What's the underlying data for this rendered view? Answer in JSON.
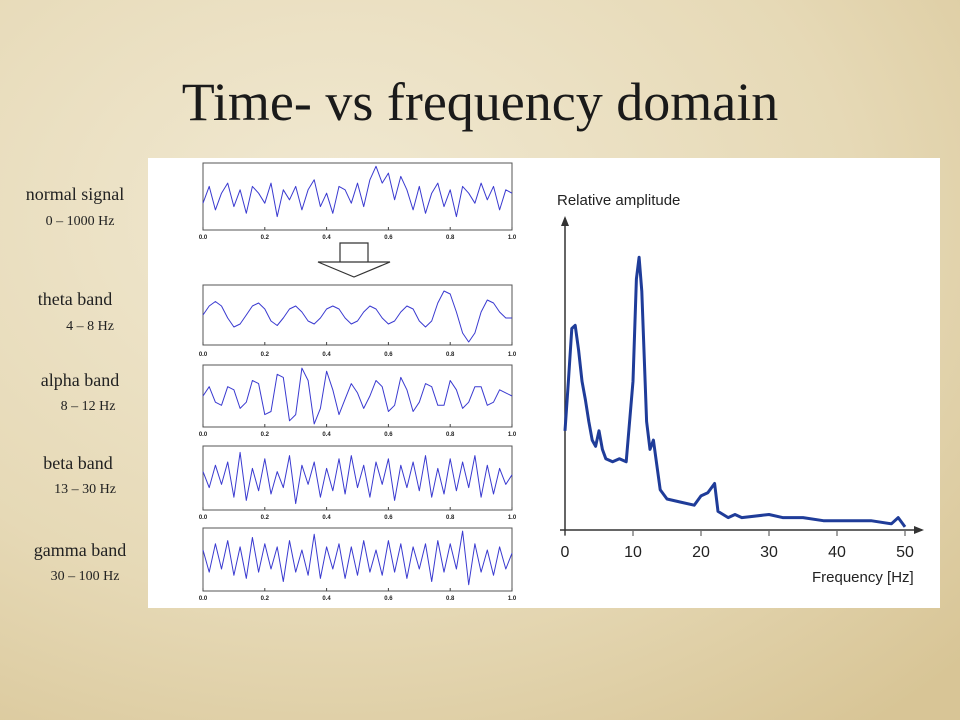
{
  "slide": {
    "title": "Time- vs frequency domain",
    "labels": [
      {
        "name": "normal signal",
        "range": "0 – 1000 Hz"
      },
      {
        "name": "theta band",
        "range": "4 – 8 Hz"
      },
      {
        "name": "alpha band",
        "range": "8 – 12 Hz"
      },
      {
        "name": "beta band",
        "range": "13 – 30 Hz"
      },
      {
        "name": "gamma band",
        "range": "30 – 100 Hz"
      }
    ]
  },
  "chart_data": [
    {
      "type": "line",
      "color": "#3a3ad0",
      "xlim": [
        0,
        1
      ],
      "ylim": [
        -1,
        1
      ],
      "xticks": [
        {
          "value": 0,
          "label": "0.0"
        },
        0.2,
        0.4,
        0.6,
        0.8,
        {
          "value": 1,
          "label": "1.0"
        }
      ],
      "x": [
        0,
        0.02,
        0.04,
        0.06,
        0.08,
        0.1,
        0.12,
        0.14,
        0.16,
        0.18,
        0.2,
        0.22,
        0.24,
        0.26,
        0.28,
        0.3,
        0.32,
        0.34,
        0.36,
        0.38,
        0.4,
        0.42,
        0.44,
        0.46,
        0.48,
        0.5,
        0.52,
        0.54,
        0.56,
        0.58,
        0.6,
        0.62,
        0.64,
        0.66,
        0.68,
        0.7,
        0.72,
        0.74,
        0.76,
        0.78,
        0.8,
        0.82,
        0.84,
        0.86,
        0.88,
        0.9,
        0.92,
        0.94,
        0.96,
        0.98,
        1
      ],
      "values": [
        -0.2,
        0.3,
        -0.4,
        0.1,
        0.4,
        -0.3,
        0.2,
        -0.5,
        0.3,
        0.1,
        -0.2,
        0.4,
        -0.6,
        0.2,
        -0.1,
        0.3,
        -0.4,
        0.2,
        0.5,
        -0.3,
        0.1,
        -0.5,
        0.3,
        0.2,
        -0.2,
        0.4,
        -0.3,
        0.5,
        0.9,
        0.4,
        0.7,
        -0.1,
        0.6,
        0.2,
        -0.4,
        0.3,
        -0.5,
        0.1,
        0.4,
        -0.3,
        0.2,
        -0.6,
        0.3,
        0.1,
        -0.2,
        0.4,
        -0.1,
        0.3,
        -0.4,
        0.2,
        0.1
      ]
    },
    {
      "type": "line",
      "color": "#3a3ad0",
      "xlim": [
        0,
        1
      ],
      "ylim": [
        -1,
        1
      ],
      "xticks": [
        {
          "value": 0,
          "label": "0.0"
        },
        0.2,
        0.4,
        0.6,
        0.8,
        {
          "value": 1,
          "label": "1.0"
        }
      ],
      "x": [
        0,
        0.02,
        0.04,
        0.06,
        0.08,
        0.1,
        0.12,
        0.14,
        0.16,
        0.18,
        0.2,
        0.22,
        0.24,
        0.26,
        0.28,
        0.3,
        0.32,
        0.34,
        0.36,
        0.38,
        0.4,
        0.42,
        0.44,
        0.46,
        0.48,
        0.5,
        0.52,
        0.54,
        0.56,
        0.58,
        0.6,
        0.62,
        0.64,
        0.66,
        0.68,
        0.7,
        0.72,
        0.74,
        0.76,
        0.78,
        0.8,
        0.82,
        0.84,
        0.86,
        0.88,
        0.9,
        0.92,
        0.94,
        0.96,
        0.98,
        1
      ],
      "values": [
        0,
        0.3,
        0.45,
        0.3,
        -0.1,
        -0.4,
        -0.3,
        0,
        0.3,
        0.4,
        0.2,
        -0.2,
        -0.35,
        -0.1,
        0.2,
        0.3,
        0.1,
        -0.2,
        -0.3,
        -0.1,
        0.2,
        0.3,
        0.2,
        -0.1,
        -0.3,
        -0.2,
        0.1,
        0.3,
        0.2,
        -0.1,
        -0.3,
        -0.2,
        0.1,
        0.3,
        0.2,
        -0.2,
        -0.4,
        -0.2,
        0.4,
        0.8,
        0.7,
        0.1,
        -0.6,
        -0.9,
        -0.6,
        0.1,
        0.5,
        0.4,
        0.1,
        -0.1,
        -0.1
      ]
    },
    {
      "type": "line",
      "color": "#3a3ad0",
      "xlim": [
        0,
        1
      ],
      "ylim": [
        -1,
        1
      ],
      "xticks": [
        {
          "value": 0,
          "label": "0.0"
        },
        0.2,
        0.4,
        0.6,
        0.8,
        {
          "value": 1,
          "label": "1.0"
        }
      ],
      "x": [
        0,
        0.02,
        0.04,
        0.06,
        0.08,
        0.1,
        0.12,
        0.14,
        0.16,
        0.18,
        0.2,
        0.22,
        0.24,
        0.26,
        0.28,
        0.3,
        0.32,
        0.34,
        0.36,
        0.38,
        0.4,
        0.42,
        0.44,
        0.46,
        0.48,
        0.5,
        0.52,
        0.54,
        0.56,
        0.58,
        0.6,
        0.62,
        0.64,
        0.66,
        0.68,
        0.7,
        0.72,
        0.74,
        0.76,
        0.78,
        0.8,
        0.82,
        0.84,
        0.86,
        0.88,
        0.9,
        0.92,
        0.94,
        0.96,
        0.98,
        1
      ],
      "values": [
        0,
        0.3,
        -0.2,
        -0.3,
        0.3,
        0.2,
        -0.4,
        -0.2,
        0.5,
        0.4,
        -0.6,
        -0.5,
        0.7,
        0.6,
        -0.8,
        -0.6,
        0.9,
        0.5,
        -0.9,
        -0.4,
        0.8,
        0.2,
        -0.6,
        -0.1,
        0.4,
        0.1,
        -0.4,
        0,
        0.5,
        0.3,
        -0.5,
        -0.3,
        0.6,
        0.2,
        -0.5,
        -0.2,
        0.4,
        0.3,
        -0.3,
        -0.3,
        0.5,
        0.2,
        -0.4,
        -0.2,
        0.3,
        0.3,
        -0.3,
        -0.2,
        0.2,
        0.1,
        0
      ]
    },
    {
      "type": "line",
      "color": "#3a3ad0",
      "xlim": [
        0,
        1
      ],
      "ylim": [
        -1,
        1
      ],
      "xticks": [
        {
          "value": 0,
          "label": "0.0"
        },
        0.2,
        0.4,
        0.6,
        0.8,
        {
          "value": 1,
          "label": "1.0"
        }
      ],
      "x": [
        0,
        0.02,
        0.04,
        0.06,
        0.08,
        0.1,
        0.12,
        0.14,
        0.16,
        0.18,
        0.2,
        0.22,
        0.24,
        0.26,
        0.28,
        0.3,
        0.32,
        0.34,
        0.36,
        0.38,
        0.4,
        0.42,
        0.44,
        0.46,
        0.48,
        0.5,
        0.52,
        0.54,
        0.56,
        0.58,
        0.6,
        0.62,
        0.64,
        0.66,
        0.68,
        0.7,
        0.72,
        0.74,
        0.76,
        0.78,
        0.8,
        0.82,
        0.84,
        0.86,
        0.88,
        0.9,
        0.92,
        0.94,
        0.96,
        0.98,
        1
      ],
      "values": [
        0.2,
        -0.3,
        0.4,
        -0.2,
        0.5,
        -0.6,
        0.8,
        -0.7,
        0.3,
        -0.4,
        0.6,
        -0.5,
        0.2,
        -0.3,
        0.7,
        -0.8,
        0.4,
        -0.2,
        0.5,
        -0.6,
        0.3,
        -0.4,
        0.6,
        -0.5,
        0.7,
        -0.3,
        0.4,
        -0.6,
        0.5,
        -0.2,
        0.6,
        -0.7,
        0.4,
        -0.3,
        0.5,
        -0.4,
        0.7,
        -0.6,
        0.3,
        -0.5,
        0.6,
        -0.4,
        0.5,
        -0.3,
        0.7,
        -0.6,
        0.4,
        -0.5,
        0.3,
        -0.2,
        0.1
      ]
    },
    {
      "type": "line",
      "color": "#3a3ad0",
      "xlim": [
        0,
        1
      ],
      "ylim": [
        -1,
        1
      ],
      "xticks": [
        {
          "value": 0,
          "label": "0.0"
        },
        0.2,
        0.4,
        0.6,
        0.8,
        {
          "value": 1,
          "label": "1.0"
        }
      ],
      "x": [
        0,
        0.02,
        0.04,
        0.06,
        0.08,
        0.1,
        0.12,
        0.14,
        0.16,
        0.18,
        0.2,
        0.22,
        0.24,
        0.26,
        0.28,
        0.3,
        0.32,
        0.34,
        0.36,
        0.38,
        0.4,
        0.42,
        0.44,
        0.46,
        0.48,
        0.5,
        0.52,
        0.54,
        0.56,
        0.58,
        0.6,
        0.62,
        0.64,
        0.66,
        0.68,
        0.7,
        0.72,
        0.74,
        0.76,
        0.78,
        0.8,
        0.82,
        0.84,
        0.86,
        0.88,
        0.9,
        0.92,
        0.94,
        0.96,
        0.98,
        1
      ],
      "values": [
        0.3,
        -0.4,
        0.5,
        -0.3,
        0.6,
        -0.5,
        0.4,
        -0.6,
        0.7,
        -0.4,
        0.5,
        -0.3,
        0.4,
        -0.7,
        0.6,
        -0.4,
        0.3,
        -0.5,
        0.8,
        -0.6,
        0.4,
        -0.3,
        0.5,
        -0.6,
        0.4,
        -0.5,
        0.6,
        -0.4,
        0.3,
        -0.5,
        0.6,
        -0.4,
        0.5,
        -0.6,
        0.4,
        -0.3,
        0.5,
        -0.7,
        0.6,
        -0.4,
        0.5,
        -0.3,
        0.9,
        -0.8,
        0.5,
        -0.4,
        0.3,
        -0.5,
        0.4,
        -0.3,
        0.2
      ]
    },
    {
      "type": "line",
      "color": "#1f3c99",
      "ylabel": "Relative amplitude",
      "xlabel": "Frequency [Hz]",
      "xlim": [
        -1,
        53
      ],
      "ylim": [
        0,
        1
      ],
      "xticks": [
        0,
        10,
        20,
        30,
        40,
        50
      ],
      "x": [
        0,
        0.5,
        1,
        1.5,
        2,
        2.5,
        3,
        3.5,
        4,
        4.5,
        5,
        5.5,
        6,
        7,
        8,
        9,
        10,
        10.5,
        10.9,
        11.3,
        12,
        12.5,
        13,
        13.5,
        14,
        15,
        17,
        19,
        20,
        21,
        22,
        22.5,
        24,
        25,
        26,
        30,
        32,
        35,
        38,
        42,
        45,
        48,
        49,
        50
      ],
      "values": [
        0.32,
        0.48,
        0.65,
        0.66,
        0.58,
        0.48,
        0.42,
        0.35,
        0.29,
        0.27,
        0.32,
        0.26,
        0.23,
        0.22,
        0.23,
        0.22,
        0.48,
        0.81,
        0.88,
        0.77,
        0.35,
        0.26,
        0.29,
        0.21,
        0.13,
        0.1,
        0.09,
        0.08,
        0.11,
        0.12,
        0.15,
        0.06,
        0.04,
        0.05,
        0.04,
        0.05,
        0.04,
        0.04,
        0.03,
        0.03,
        0.03,
        0.02,
        0.04,
        0.01
      ]
    }
  ]
}
